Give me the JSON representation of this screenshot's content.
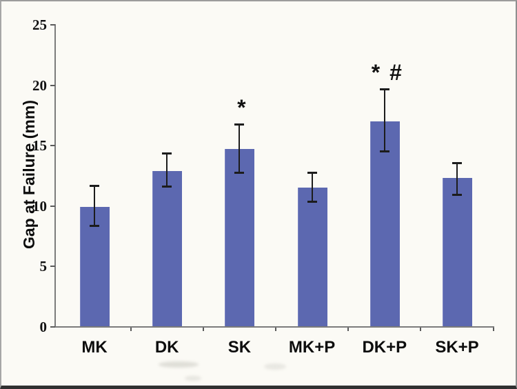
{
  "chart_data": {
    "type": "bar",
    "title": "",
    "xlabel": "",
    "ylabel": "Gap at Failure (mm)",
    "categories": [
      "MK",
      "DK",
      "SK",
      "MK+P",
      "DK+P",
      "SK+P"
    ],
    "values": [
      9.9,
      12.9,
      14.7,
      11.5,
      17.0,
      12.3
    ],
    "error_plus": [
      1.8,
      1.5,
      2.1,
      1.3,
      2.7,
      1.3
    ],
    "error_minus": [
      1.6,
      1.3,
      2.0,
      1.2,
      2.5,
      1.4
    ],
    "annotations": [
      {
        "category": "SK",
        "text": "*"
      },
      {
        "category": "DK+P",
        "text": "* #"
      }
    ],
    "yticks": [
      0,
      5,
      10,
      15,
      20,
      25
    ],
    "ylim": [
      0,
      25
    ],
    "legend": "none",
    "grid": "off",
    "bar_color": "#5c68b0",
    "bar_edge_color": "#7b84c2",
    "error_color": "#1c1c1c",
    "axis_color": "#7b7b7b",
    "text_color": "#0d0d0d"
  }
}
